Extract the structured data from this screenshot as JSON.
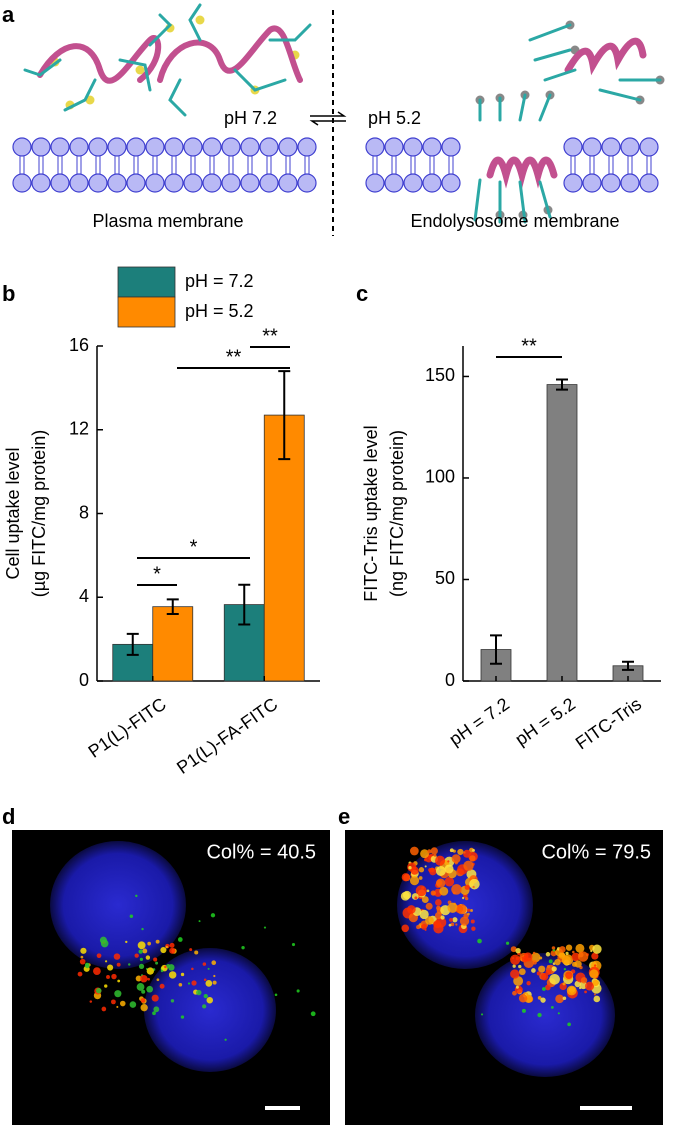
{
  "figure": {
    "panel_labels": [
      "a",
      "b",
      "c",
      "d",
      "e"
    ],
    "diagram": {
      "left_ph": "pH 7.2",
      "right_ph": "pH 5.2",
      "left_caption": "Plasma membrane",
      "right_caption": "Endolysosome membrane"
    },
    "images": [
      {
        "annotation": "Col% = 40.5"
      },
      {
        "annotation": "Col% = 79.5"
      }
    ]
  },
  "chart_data": [
    {
      "type": "bar",
      "ylabel": [
        "Cell uptake level",
        "(µg FITC/mg protein)"
      ],
      "categories": [
        "P1(L)-FITC",
        "P1(L)-FA-FITC"
      ],
      "series": [
        {
          "name": "pH = 7.2",
          "color": "#1c7f7b",
          "values": [
            1.75,
            3.65
          ],
          "errors": [
            0.5,
            0.95
          ]
        },
        {
          "name": "pH = 5.2",
          "color": "#ff8a00",
          "values": [
            3.55,
            12.7
          ],
          "errors": [
            0.35,
            2.1
          ]
        }
      ],
      "ylim": [
        0,
        16
      ],
      "yticks": [
        0,
        4,
        8,
        12,
        16
      ],
      "annotations": [
        "*",
        "*",
        "**",
        "**"
      ]
    },
    {
      "type": "bar",
      "ylabel": [
        "FITC-Tris uptake level",
        "(ng FITC/mg protein)"
      ],
      "categories": [
        "pH = 7.2",
        "pH = 5.2",
        "FITC-Tris"
      ],
      "values": [
        15.5,
        146,
        7.5
      ],
      "errors": [
        7,
        2.5,
        2
      ],
      "color": "#808080",
      "ylim": [
        0,
        165
      ],
      "yticks": [
        0,
        50,
        100,
        150
      ],
      "annotations": [
        "**"
      ]
    }
  ]
}
